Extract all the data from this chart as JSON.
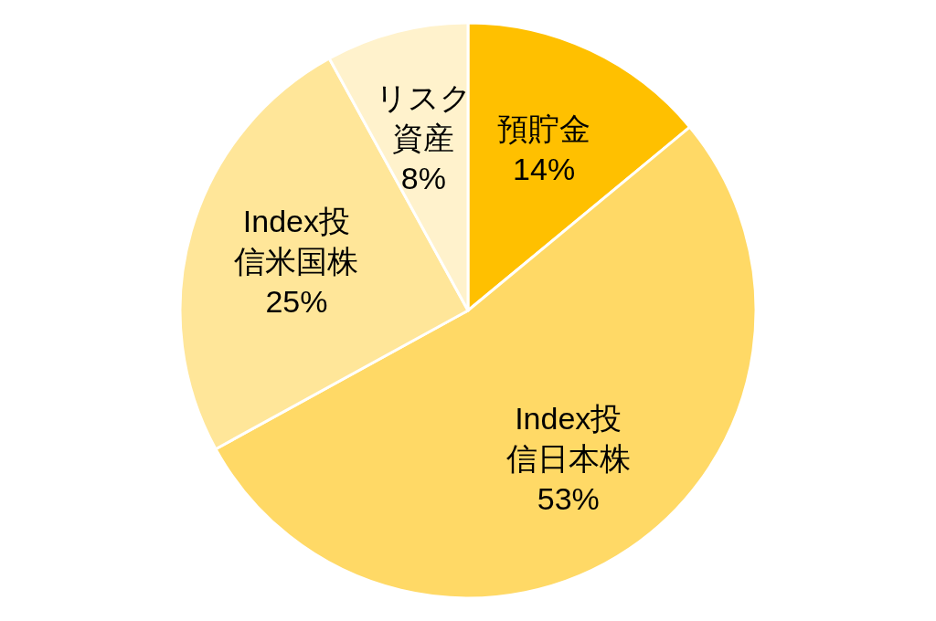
{
  "chart_data": {
    "type": "pie",
    "categories": [
      "預貯金",
      "Index投信日本株",
      "Index投信米国株",
      "リスク資産"
    ],
    "values": [
      14,
      53,
      25,
      8
    ],
    "colors": [
      "#ffc000",
      "#ffd966",
      "#ffe699",
      "#fff2cc"
    ],
    "value_labels": [
      "14%",
      "53%",
      "25%",
      "8%"
    ]
  }
}
